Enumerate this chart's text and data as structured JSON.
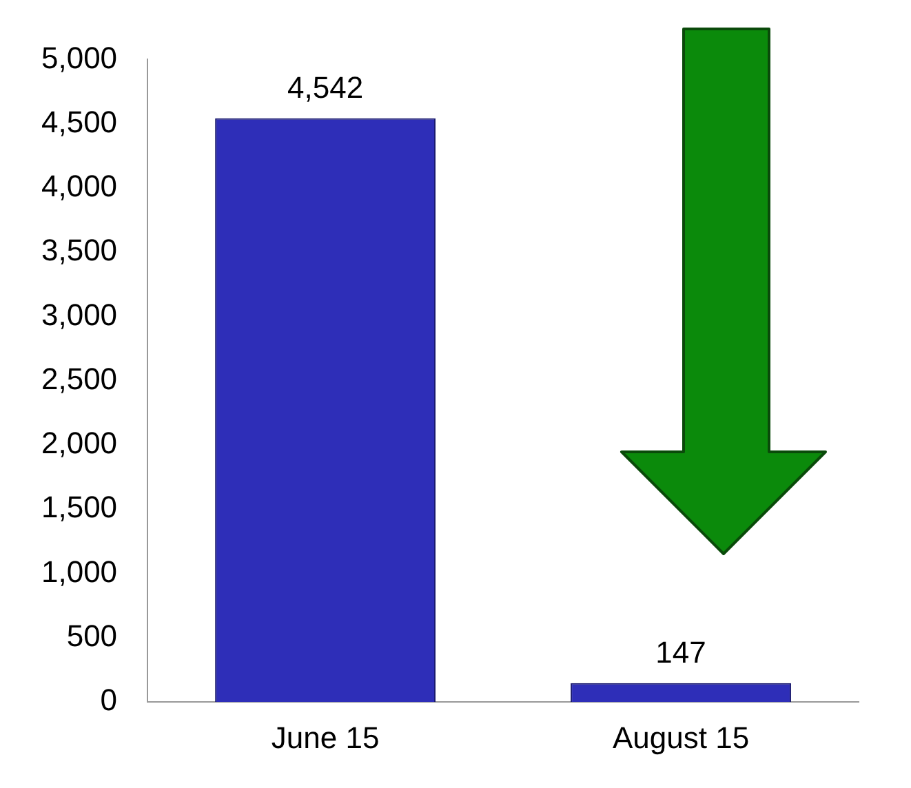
{
  "chart_data": {
    "type": "bar",
    "categories": [
      "June 15",
      "August 15"
    ],
    "values": [
      4542,
      147
    ],
    "color": "#2e2eb8",
    "ylim": [
      0,
      5000
    ],
    "yticks": [
      {
        "value": 0,
        "label": "0"
      },
      {
        "value": 500,
        "label": "500"
      },
      {
        "value": 1000,
        "label": "1,000"
      },
      {
        "value": 1500,
        "label": "1,500"
      },
      {
        "value": 2000,
        "label": "2,000"
      },
      {
        "value": 2500,
        "label": "2,500"
      },
      {
        "value": 3000,
        "label": "3,000"
      },
      {
        "value": 3500,
        "label": "3,500"
      },
      {
        "value": 4000,
        "label": "4,000"
      },
      {
        "value": 4500,
        "label": "4,500"
      },
      {
        "value": 5000,
        "label": "5,000"
      }
    ],
    "value_labels": [
      "4,542",
      "147"
    ],
    "grid": false,
    "legend": false
  }
}
